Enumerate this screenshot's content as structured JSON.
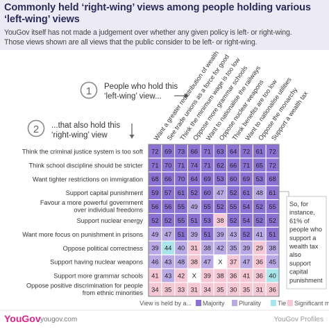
{
  "header": {
    "title": "Commonly held ‘right-wing’ views among people holding various ‘left-wing’ views",
    "subtitle_1": "YouGov itself has not made a judgement over whether any given policy is left- or right-wing.",
    "subtitle_2": "Those views shown are all views that the public consider to be left- or right-wing."
  },
  "steps": [
    {
      "number": "1",
      "line1": "People who hold this",
      "line2": "‘left-wing’ view..."
    },
    {
      "number": "2",
      "line1": "...that also hold this",
      "line2": "‘right-wing’ view"
    }
  ],
  "callout": [
    "So, for",
    "instance,",
    "61% of",
    "people who",
    "support a",
    "wealth tax",
    "also",
    "support",
    "capital",
    "punishment"
  ],
  "legend": {
    "label": "View is held by a...",
    "items": [
      {
        "label": "Majority",
        "color": "#8a71d3"
      },
      {
        "label": "Plurality",
        "color": "#b9aae6"
      },
      {
        "label": "Tie",
        "color": "#a9e6ec"
      },
      {
        "label": "Significant minority",
        "color": "#f6c8d6"
      }
    ]
  },
  "footer": {
    "brand": "YouGov",
    "site": "yougov.com",
    "right": "YouGov Profiles"
  },
  "colors": {
    "majority": "#8a71d3",
    "plurality": "#b9aae6",
    "tie": "#a9e6ec",
    "minority": "#f6c8d6",
    "blank": "#ffffff"
  },
  "chart_data": {
    "type": "heatmap",
    "columns": [
      "Want a greater redistribution of wealth",
      "See trade unions as a force for good",
      "Think the minimum wage is too low",
      "Oppose more grammar schools",
      "Want to nationalise the railways",
      "Oppose nuclear weapons",
      "Think benefits are too low",
      "Want to nationalise utilities",
      "Oppose the monarchy",
      "Support a wealth tax"
    ],
    "rows": [
      {
        "label": [
          "Think the criminal justice system is too soft"
        ],
        "values": [
          "72",
          "69",
          "73",
          "66",
          "71",
          "63",
          "64",
          "72",
          "61",
          "72"
        ],
        "classes": [
          "M",
          "M",
          "M",
          "M",
          "M",
          "M",
          "M",
          "M",
          "M",
          "M"
        ]
      },
      {
        "label": [
          "Think school discipline should be stricter"
        ],
        "values": [
          "71",
          "70",
          "71",
          "74",
          "71",
          "62",
          "66",
          "71",
          "65",
          "72"
        ],
        "classes": [
          "M",
          "M",
          "M",
          "M",
          "M",
          "M",
          "M",
          "M",
          "M",
          "M"
        ]
      },
      {
        "label": [
          "Want tighter restrictions on immigration"
        ],
        "values": [
          "68",
          "66",
          "70",
          "64",
          "69",
          "53",
          "60",
          "69",
          "53",
          "68"
        ],
        "classes": [
          "M",
          "M",
          "M",
          "M",
          "M",
          "M",
          "M",
          "M",
          "M",
          "M"
        ]
      },
      {
        "label": [
          "Support capital punishment"
        ],
        "values": [
          "59",
          "57",
          "61",
          "52",
          "60",
          "47",
          "52",
          "61",
          "48",
          "61"
        ],
        "classes": [
          "M",
          "M",
          "M",
          "M",
          "M",
          "P",
          "M",
          "M",
          "P",
          "M"
        ]
      },
      {
        "label": [
          "Favour a more powerful government",
          "over individual freedoms"
        ],
        "values": [
          "56",
          "56",
          "55",
          "49",
          "55",
          "52",
          "55",
          "54",
          "52",
          "55"
        ],
        "classes": [
          "M",
          "M",
          "M",
          "P",
          "M",
          "M",
          "M",
          "M",
          "M",
          "M"
        ]
      },
      {
        "label": [
          "Support nuclear energy"
        ],
        "values": [
          "52",
          "52",
          "55",
          "51",
          "53",
          "38",
          "52",
          "54",
          "52",
          "52"
        ],
        "classes": [
          "M",
          "M",
          "M",
          "M",
          "M",
          "S",
          "M",
          "M",
          "M",
          "M"
        ]
      },
      {
        "label": [
          "Want more focus on punishment in prisons"
        ],
        "values": [
          "49",
          "47",
          "51",
          "39",
          "51",
          "39",
          "43",
          "52",
          "41",
          "51"
        ],
        "classes": [
          "P",
          "P",
          "M",
          "P",
          "M",
          "P",
          "P",
          "M",
          "P",
          "M"
        ]
      },
      {
        "label": [
          "Oppose political correctness"
        ],
        "values": [
          "39",
          "44",
          "40",
          "31",
          "38",
          "42",
          "35",
          "39",
          "29",
          "38"
        ],
        "classes": [
          "P",
          "T",
          "P",
          "S",
          "P",
          "P",
          "P",
          "P",
          "S",
          "P"
        ]
      },
      {
        "label": [
          "Support having nuclear weapons"
        ],
        "values": [
          "46",
          "43",
          "48",
          "38",
          "47",
          "X",
          "37",
          "47",
          "36",
          "45"
        ],
        "classes": [
          "P",
          "P",
          "P",
          "S",
          "P",
          "X",
          "S",
          "P",
          "S",
          "P"
        ]
      },
      {
        "label": [
          "Support more grammar schools"
        ],
        "values": [
          "41",
          "43",
          "42",
          "X",
          "39",
          "38",
          "36",
          "41",
          "36",
          "40"
        ],
        "classes": [
          "S",
          "P",
          "S",
          "X",
          "S",
          "S",
          "S",
          "S",
          "S",
          "T"
        ]
      },
      {
        "label": [
          "Oppose positive discrimination for people",
          "from ethnic minorities"
        ],
        "values": [
          "34",
          "35",
          "33",
          "31",
          "34",
          "35",
          "30",
          "35",
          "31",
          "36"
        ],
        "classes": [
          "S",
          "S",
          "S",
          "S",
          "S",
          "S",
          "S",
          "S",
          "S",
          "S"
        ]
      }
    ]
  }
}
